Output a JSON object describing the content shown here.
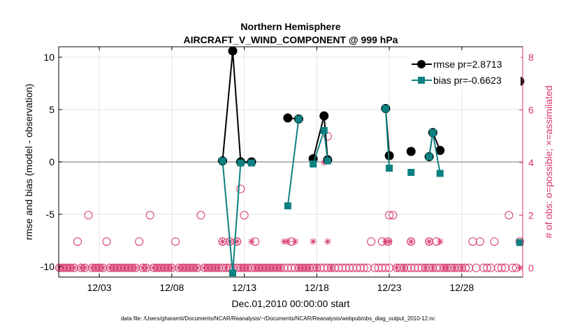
{
  "chart_data": {
    "type": "scatter",
    "title": "Northern Hemisphere",
    "subtitle": "AIRCRAFT_V_WIND_COMPONENT @ 999 hPa",
    "xlabel": "Dec.01,2010 00:00:00 start",
    "ylabel": "rmse and bias (model - observation)",
    "y2label": "# of obs: o=possible; ×=assimilated",
    "xlim": [
      0.2,
      32.2
    ],
    "ylim": [
      -11,
      11
    ],
    "y2lim": [
      -0.35,
      8.4
    ],
    "xticks": [
      {
        "value": 3,
        "label": "12/03"
      },
      {
        "value": 8,
        "label": "12/08"
      },
      {
        "value": 13,
        "label": "12/13"
      },
      {
        "value": 18,
        "label": "12/18"
      },
      {
        "value": 23,
        "label": "12/23"
      },
      {
        "value": 28,
        "label": "12/28"
      }
    ],
    "yticks": [
      {
        "value": -10,
        "label": "-10"
      },
      {
        "value": -5,
        "label": "-5"
      },
      {
        "value": 0,
        "label": "0"
      },
      {
        "value": 5,
        "label": "5"
      },
      {
        "value": 10,
        "label": "10"
      }
    ],
    "y2ticks": [
      {
        "value": 0,
        "label": "0"
      },
      {
        "value": 2,
        "label": "2"
      },
      {
        "value": 4,
        "label": "4"
      },
      {
        "value": 6,
        "label": "6"
      },
      {
        "value": 8,
        "label": "8"
      }
    ],
    "zero_line": 0,
    "grid": true,
    "legend_position": "top-right",
    "series": [
      {
        "name": "rmse pr=2.8713",
        "color": "#000000",
        "marker": "circle",
        "x": [
          11.5,
          12.2,
          12.75,
          13.5,
          16.0,
          16.75,
          17.75,
          18.5,
          18.75,
          22.75,
          23.0,
          24.5,
          25.75,
          26.0,
          26.5,
          32.0
        ],
        "y": [
          0.1,
          10.6,
          0.0,
          0.0,
          4.2,
          4.1,
          0.3,
          4.4,
          0.2,
          5.1,
          0.6,
          1.0,
          0.5,
          2.8,
          1.1,
          7.7
        ]
      },
      {
        "name": "bias pr=-0.6623",
        "color": "#0d8080",
        "marker": "square",
        "x": [
          11.5,
          12.2,
          12.75,
          13.5,
          16.0,
          16.75,
          17.75,
          18.5,
          18.75,
          22.75,
          23.0,
          24.5,
          25.75,
          26.0,
          26.5,
          32.0
        ],
        "y": [
          0.1,
          -10.6,
          -0.1,
          -0.1,
          -4.2,
          4.1,
          -0.2,
          3.0,
          0.1,
          5.1,
          -0.6,
          -1.0,
          0.5,
          2.8,
          -1.1,
          -7.7
        ]
      }
    ],
    "obs_counts": {
      "possible_color": "#d6336c",
      "assimilated_color": "#d6336c",
      "possible": [
        {
          "x": 0.25,
          "n": 0
        },
        {
          "x": 0.5,
          "n": 0
        },
        {
          "x": 0.75,
          "n": 0
        },
        {
          "x": 1.0,
          "n": 0
        },
        {
          "x": 1.25,
          "n": 0
        },
        {
          "x": 1.5,
          "n": 1
        },
        {
          "x": 1.75,
          "n": 0
        },
        {
          "x": 2.0,
          "n": 0
        },
        {
          "x": 2.25,
          "n": 2
        },
        {
          "x": 2.5,
          "n": 0
        },
        {
          "x": 2.75,
          "n": 0
        },
        {
          "x": 3.0,
          "n": 0
        },
        {
          "x": 3.25,
          "n": 0
        },
        {
          "x": 3.5,
          "n": 1
        },
        {
          "x": 3.75,
          "n": 0
        },
        {
          "x": 4.0,
          "n": 0
        },
        {
          "x": 4.25,
          "n": 0
        },
        {
          "x": 4.5,
          "n": 0
        },
        {
          "x": 4.75,
          "n": 0
        },
        {
          "x": 5.0,
          "n": 0
        },
        {
          "x": 5.25,
          "n": 0
        },
        {
          "x": 5.5,
          "n": 0
        },
        {
          "x": 5.75,
          "n": 1
        },
        {
          "x": 6.0,
          "n": 0
        },
        {
          "x": 6.25,
          "n": 0
        },
        {
          "x": 6.5,
          "n": 2
        },
        {
          "x": 6.75,
          "n": 0
        },
        {
          "x": 7.0,
          "n": 0
        },
        {
          "x": 7.25,
          "n": 0
        },
        {
          "x": 7.5,
          "n": 0
        },
        {
          "x": 7.75,
          "n": 0
        },
        {
          "x": 8.0,
          "n": 0
        },
        {
          "x": 8.25,
          "n": 1
        },
        {
          "x": 8.5,
          "n": 0
        },
        {
          "x": 8.75,
          "n": 0
        },
        {
          "x": 9.0,
          "n": 0
        },
        {
          "x": 9.25,
          "n": 0
        },
        {
          "x": 9.5,
          "n": 0
        },
        {
          "x": 9.75,
          "n": 0
        },
        {
          "x": 10.0,
          "n": 2
        },
        {
          "x": 10.25,
          "n": 0
        },
        {
          "x": 10.5,
          "n": 0
        },
        {
          "x": 10.75,
          "n": 0
        },
        {
          "x": 11.0,
          "n": 0
        },
        {
          "x": 11.25,
          "n": 0
        },
        {
          "x": 11.5,
          "n": 0
        },
        {
          "x": 11.75,
          "n": 0
        },
        {
          "x": 12.0,
          "n": 0
        },
        {
          "x": 12.25,
          "n": 0
        },
        {
          "x": 12.5,
          "n": 0
        },
        {
          "x": 12.75,
          "n": 0
        },
        {
          "x": 13.0,
          "n": 0
        },
        {
          "x": 13.25,
          "n": 0
        },
        {
          "x": 13.5,
          "n": 0
        },
        {
          "x": 13.75,
          "n": 0
        },
        {
          "x": 14.0,
          "n": 0
        },
        {
          "x": 14.25,
          "n": 0
        },
        {
          "x": 14.5,
          "n": 0
        },
        {
          "x": 14.75,
          "n": 0
        },
        {
          "x": 15.0,
          "n": 0
        },
        {
          "x": 15.25,
          "n": 0
        },
        {
          "x": 15.5,
          "n": 0
        },
        {
          "x": 15.75,
          "n": 0
        },
        {
          "x": 16.0,
          "n": 0
        },
        {
          "x": 16.25,
          "n": 0
        },
        {
          "x": 16.5,
          "n": 0
        },
        {
          "x": 16.75,
          "n": 0
        },
        {
          "x": 17.0,
          "n": 0
        },
        {
          "x": 17.25,
          "n": 0
        },
        {
          "x": 17.5,
          "n": 0
        },
        {
          "x": 17.75,
          "n": 0
        },
        {
          "x": 18.0,
          "n": 0
        },
        {
          "x": 18.25,
          "n": 0
        },
        {
          "x": 18.5,
          "n": 0
        },
        {
          "x": 18.75,
          "n": 0
        },
        {
          "x": 19.0,
          "n": 0
        },
        {
          "x": 19.25,
          "n": 0
        },
        {
          "x": 19.5,
          "n": 0
        },
        {
          "x": 19.75,
          "n": 0
        },
        {
          "x": 20.0,
          "n": 0
        },
        {
          "x": 20.25,
          "n": 0
        },
        {
          "x": 20.5,
          "n": 0
        },
        {
          "x": 20.75,
          "n": 0
        },
        {
          "x": 21.0,
          "n": 0
        },
        {
          "x": 21.25,
          "n": 0
        },
        {
          "x": 21.5,
          "n": 0
        },
        {
          "x": 21.75,
          "n": 1
        },
        {
          "x": 22.0,
          "n": 0
        },
        {
          "x": 22.25,
          "n": 0
        },
        {
          "x": 22.5,
          "n": 0
        },
        {
          "x": 22.75,
          "n": 0
        },
        {
          "x": 23.0,
          "n": 0
        },
        {
          "x": 23.25,
          "n": 2
        },
        {
          "x": 23.5,
          "n": 0
        },
        {
          "x": 23.75,
          "n": 0
        },
        {
          "x": 24.0,
          "n": 0
        },
        {
          "x": 24.25,
          "n": 0
        },
        {
          "x": 24.5,
          "n": 0
        },
        {
          "x": 24.75,
          "n": 0
        },
        {
          "x": 25.0,
          "n": 0
        },
        {
          "x": 25.25,
          "n": 0
        },
        {
          "x": 25.5,
          "n": 0
        },
        {
          "x": 25.75,
          "n": 0
        },
        {
          "x": 26.0,
          "n": 0
        },
        {
          "x": 26.25,
          "n": 0
        },
        {
          "x": 26.5,
          "n": 0
        },
        {
          "x": 26.75,
          "n": 0
        },
        {
          "x": 27.0,
          "n": 0
        },
        {
          "x": 27.25,
          "n": 0
        },
        {
          "x": 27.5,
          "n": 0
        },
        {
          "x": 27.75,
          "n": 0
        },
        {
          "x": 28.0,
          "n": 0
        },
        {
          "x": 28.25,
          "n": 0
        },
        {
          "x": 28.5,
          "n": 0
        },
        {
          "x": 28.75,
          "n": 1
        },
        {
          "x": 29.0,
          "n": 0
        },
        {
          "x": 29.25,
          "n": 1
        },
        {
          "x": 29.5,
          "n": 0
        },
        {
          "x": 29.75,
          "n": 0
        },
        {
          "x": 30.0,
          "n": 0
        },
        {
          "x": 30.25,
          "n": 1
        },
        {
          "x": 30.5,
          "n": 0
        },
        {
          "x": 30.75,
          "n": 0
        },
        {
          "x": 31.0,
          "n": 0
        },
        {
          "x": 31.25,
          "n": 2
        },
        {
          "x": 31.5,
          "n": 0
        },
        {
          "x": 31.75,
          "n": 0
        },
        {
          "x": 32.0,
          "n": 1
        },
        {
          "x": 11.5,
          "n": 1
        },
        {
          "x": 12.0,
          "n": 1
        },
        {
          "x": 12.5,
          "n": 1
        },
        {
          "x": 12.75,
          "n": 3
        },
        {
          "x": 13.0,
          "n": 2
        },
        {
          "x": 13.75,
          "n": 1
        },
        {
          "x": 16.25,
          "n": 1
        },
        {
          "x": 18.75,
          "n": 5
        },
        {
          "x": 22.5,
          "n": 1
        },
        {
          "x": 22.9,
          "n": 1
        },
        {
          "x": 23.0,
          "n": 2
        },
        {
          "x": 24.5,
          "n": 1
        },
        {
          "x": 25.75,
          "n": 1
        },
        {
          "x": 26.25,
          "n": 1
        }
      ],
      "assimilated": [
        {
          "x": 0.25,
          "n": 0
        },
        {
          "x": 0.5,
          "n": 0
        },
        {
          "x": 0.75,
          "n": 0
        },
        {
          "x": 1.0,
          "n": 0
        },
        {
          "x": 1.25,
          "n": 0
        },
        {
          "x": 1.75,
          "n": 0
        },
        {
          "x": 2.0,
          "n": 0
        },
        {
          "x": 2.5,
          "n": 0
        },
        {
          "x": 2.75,
          "n": 0
        },
        {
          "x": 3.0,
          "n": 0
        },
        {
          "x": 3.25,
          "n": 0
        },
        {
          "x": 3.75,
          "n": 0
        },
        {
          "x": 4.0,
          "n": 0
        },
        {
          "x": 4.25,
          "n": 0
        },
        {
          "x": 4.5,
          "n": 0
        },
        {
          "x": 4.75,
          "n": 0
        },
        {
          "x": 5.0,
          "n": 0
        },
        {
          "x": 5.25,
          "n": 0
        },
        {
          "x": 5.5,
          "n": 0
        },
        {
          "x": 6.0,
          "n": 0
        },
        {
          "x": 6.25,
          "n": 0
        },
        {
          "x": 6.75,
          "n": 0
        },
        {
          "x": 7.0,
          "n": 0
        },
        {
          "x": 7.25,
          "n": 0
        },
        {
          "x": 7.5,
          "n": 0
        },
        {
          "x": 7.75,
          "n": 0
        },
        {
          "x": 8.0,
          "n": 0
        },
        {
          "x": 8.5,
          "n": 0
        },
        {
          "x": 8.75,
          "n": 0
        },
        {
          "x": 9.0,
          "n": 0
        },
        {
          "x": 9.25,
          "n": 0
        },
        {
          "x": 9.5,
          "n": 0
        },
        {
          "x": 9.75,
          "n": 0
        },
        {
          "x": 10.25,
          "n": 0
        },
        {
          "x": 10.5,
          "n": 0
        },
        {
          "x": 10.75,
          "n": 0
        },
        {
          "x": 11.0,
          "n": 0
        },
        {
          "x": 11.25,
          "n": 0
        },
        {
          "x": 11.5,
          "n": 1
        },
        {
          "x": 11.75,
          "n": 0
        },
        {
          "x": 12.0,
          "n": 1
        },
        {
          "x": 12.25,
          "n": 0
        },
        {
          "x": 12.5,
          "n": 1
        },
        {
          "x": 12.75,
          "n": 0
        },
        {
          "x": 13.0,
          "n": 0
        },
        {
          "x": 13.25,
          "n": 0
        },
        {
          "x": 13.5,
          "n": 1
        },
        {
          "x": 13.75,
          "n": 0
        },
        {
          "x": 14.0,
          "n": 0
        },
        {
          "x": 14.25,
          "n": 0
        },
        {
          "x": 14.5,
          "n": 0
        },
        {
          "x": 14.75,
          "n": 0
        },
        {
          "x": 15.0,
          "n": 0
        },
        {
          "x": 15.25,
          "n": 0
        },
        {
          "x": 15.5,
          "n": 0
        },
        {
          "x": 15.75,
          "n": 1
        },
        {
          "x": 16.0,
          "n": 1
        },
        {
          "x": 16.5,
          "n": 1
        },
        {
          "x": 16.75,
          "n": 0
        },
        {
          "x": 17.0,
          "n": 0
        },
        {
          "x": 17.25,
          "n": 0
        },
        {
          "x": 17.5,
          "n": 0
        },
        {
          "x": 17.75,
          "n": 1
        },
        {
          "x": 18.0,
          "n": 0
        },
        {
          "x": 18.5,
          "n": 4
        },
        {
          "x": 18.75,
          "n": 1
        },
        {
          "x": 19.0,
          "n": 0
        },
        {
          "x": 22.75,
          "n": 1
        },
        {
          "x": 23.0,
          "n": 1
        },
        {
          "x": 23.5,
          "n": 0
        },
        {
          "x": 24.0,
          "n": 0
        },
        {
          "x": 24.5,
          "n": 1
        },
        {
          "x": 25.5,
          "n": 0
        },
        {
          "x": 25.75,
          "n": 1
        },
        {
          "x": 26.0,
          "n": 0
        },
        {
          "x": 26.5,
          "n": 1
        },
        {
          "x": 26.75,
          "n": 0
        },
        {
          "x": 27.0,
          "n": 0
        },
        {
          "x": 27.5,
          "n": 0
        },
        {
          "x": 28.0,
          "n": 0
        },
        {
          "x": 32.0,
          "n": 0
        }
      ]
    },
    "footnote": "data file: /Users/gharamti/Documents/NCAR/Reanalysis/~/Documents/NCAR/Reanalysis/webpub/obs_diag_output_2010-12.nc"
  }
}
